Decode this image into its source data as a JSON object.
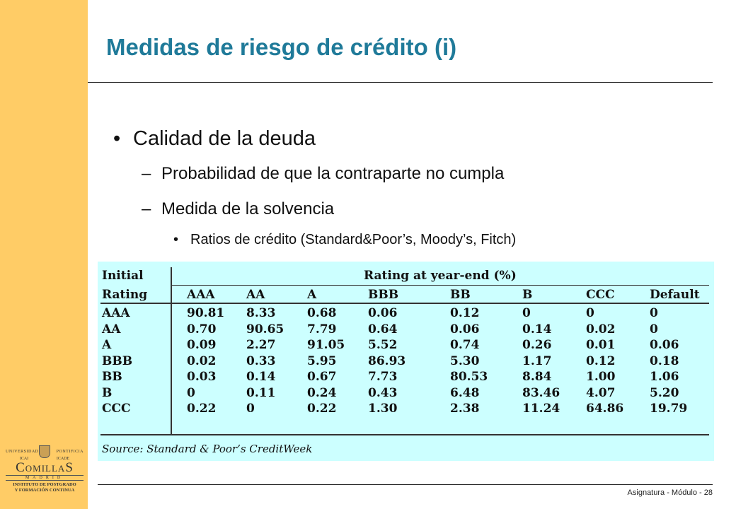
{
  "slide": {
    "title": "Medidas de riesgo de crédito (i)",
    "bullet1": "Calidad de la deuda",
    "sub1": "Probabilidad de que la contraparte no cumpla",
    "sub2": "Medida de la solvencia",
    "subsub1": "Ratios de crédito (Standard&Poor’s, Moody’s, Fitch)",
    "footer": "Asignatura - Módulo - 28"
  },
  "logo": {
    "top_left": "UNIVERSIDAD",
    "top_right": "PONTIFICIA",
    "mid_left": "ICAI",
    "mid_right": "ICADE",
    "brand": "ComillaS",
    "city": "MADRID",
    "inst1": "INSTITUTO DE POSTGRADO",
    "inst2": "Y FORMACIÓN CONTINUA"
  },
  "table": {
    "header_row1_left": "Initial",
    "header_row1_right": "Rating at year-end (%)",
    "header_row2_left": "Rating",
    "columns": [
      "AAA",
      "AA",
      "A",
      "BBB",
      "BB",
      "B",
      "CCC",
      "Default"
    ],
    "rows": [
      {
        "rating": "AAA",
        "values": [
          "90.81",
          "8.33",
          "0.68",
          "0.06",
          "0.12",
          "0",
          "0",
          "0"
        ]
      },
      {
        "rating": "AA",
        "values": [
          "0.70",
          "90.65",
          "7.79",
          "0.64",
          "0.06",
          "0.14",
          "0.02",
          "0"
        ]
      },
      {
        "rating": "A",
        "values": [
          "0.09",
          "2.27",
          "91.05",
          "5.52",
          "0.74",
          "0.26",
          "0.01",
          "0.06"
        ]
      },
      {
        "rating": "BBB",
        "values": [
          "0.02",
          "0.33",
          "5.95",
          "86.93",
          "5.30",
          "1.17",
          "0.12",
          "0.18"
        ]
      },
      {
        "rating": "BB",
        "values": [
          "0.03",
          "0.14",
          "0.67",
          "7.73",
          "80.53",
          "8.84",
          "1.00",
          "1.06"
        ]
      },
      {
        "rating": "B",
        "values": [
          "0",
          "0.11",
          "0.24",
          "0.43",
          "6.48",
          "83.46",
          "4.07",
          "5.20"
        ]
      },
      {
        "rating": "CCC",
        "values": [
          "0.22",
          "0",
          "0.22",
          "1.30",
          "2.38",
          "11.24",
          "64.86",
          "19.79"
        ]
      }
    ],
    "source": "Source: Standard & Poor’s CreditWeek"
  },
  "colors": {
    "sidebar": "#FFCC66",
    "title": "#1F7A99",
    "table_bg": "#CCFFFF"
  }
}
